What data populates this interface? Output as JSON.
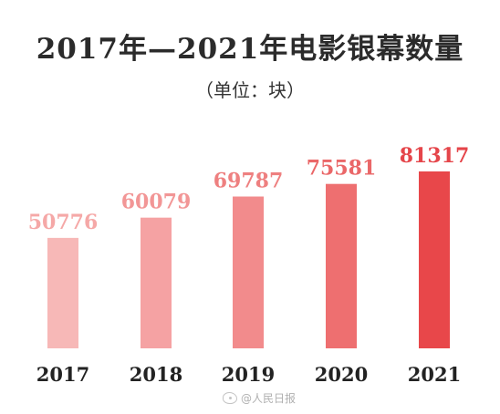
{
  "title": "2017年—2021年电影银幕数量",
  "subtitle": "（单位：块）",
  "watermark": "@人民日报",
  "colors": {
    "bars": [
      "#f7b8b7",
      "#f5a2a3",
      "#f28b8c",
      "#ee6f70",
      "#e8474a"
    ],
    "labels": [
      "#f5a8a7",
      "#f29696",
      "#ee8080",
      "#ea6768",
      "#e5454a"
    ],
    "year_text": "#222222"
  },
  "chart_data": {
    "type": "bar",
    "title": "2017年—2021年电影银幕数量",
    "subtitle": "（单位：块）",
    "categories": [
      "2017",
      "2018",
      "2019",
      "2020",
      "2021"
    ],
    "values": [
      50776,
      60079,
      69787,
      75581,
      81317
    ],
    "data_labels": [
      "50776",
      "60079",
      "69787",
      "75581",
      "81317"
    ],
    "xlabel": "",
    "ylabel": "",
    "grid": false,
    "legend": "none"
  }
}
